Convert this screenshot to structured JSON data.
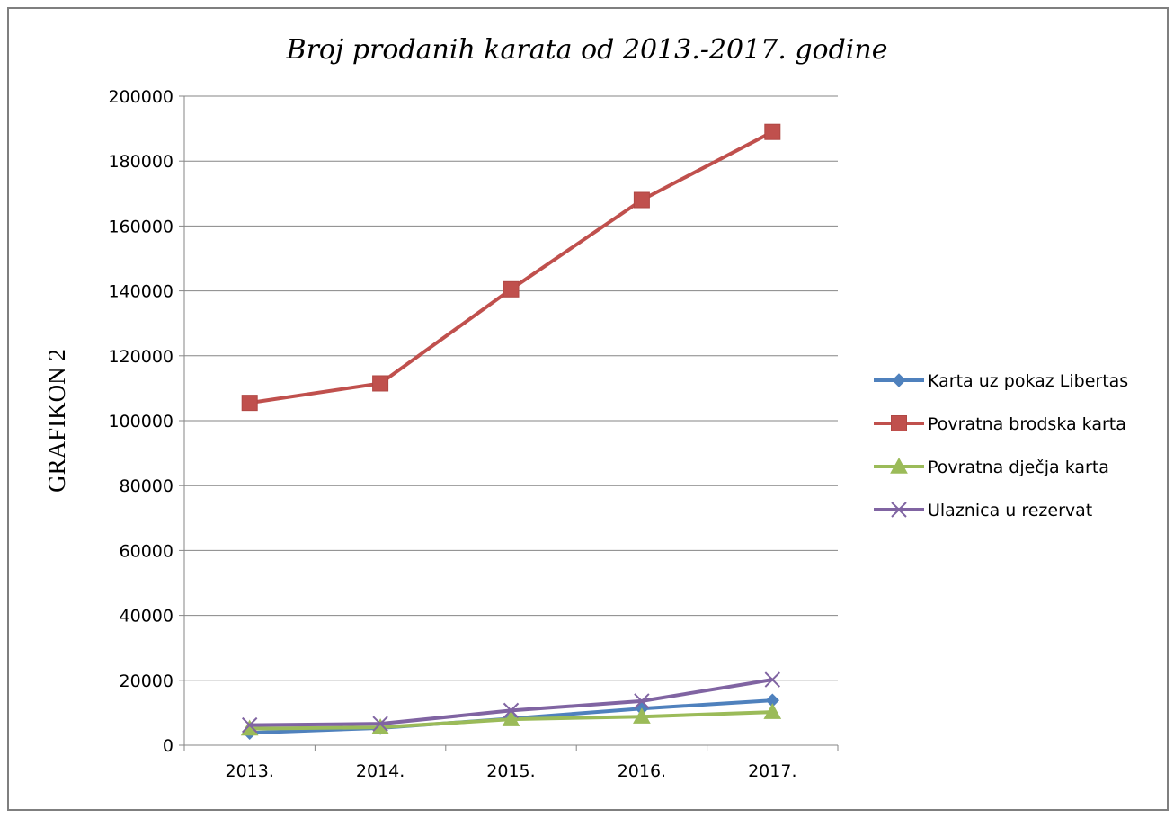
{
  "chart_data": {
    "type": "line",
    "title": "Broj prodanih karata od 2013.-2017. godine",
    "ylabel": "GRAFIKON 2",
    "xlabel": "",
    "categories": [
      "2013.",
      "2014.",
      "2015.",
      "2016.",
      "2017."
    ],
    "ylim": [
      0,
      200000
    ],
    "yticks": [
      0,
      20000,
      40000,
      60000,
      80000,
      100000,
      120000,
      140000,
      160000,
      180000,
      200000
    ],
    "grid": "horizontal",
    "legend_position": "right",
    "series": [
      {
        "name": "Karta uz pokaz Libertas",
        "color": "#4f81bd",
        "marker": "diamond",
        "values": [
          3800,
          5300,
          8200,
          11300,
          13800
        ]
      },
      {
        "name": "Povratna brodska karta",
        "color": "#c0504d",
        "marker": "square",
        "values": [
          105500,
          111500,
          140500,
          168000,
          189000
        ]
      },
      {
        "name": "Povratna dječja karta",
        "color": "#9bbb59",
        "marker": "triangle",
        "values": [
          5100,
          5500,
          8000,
          8800,
          10200
        ]
      },
      {
        "name": "Ulaznica u rezervat",
        "color": "#8064a2",
        "marker": "x",
        "values": [
          6200,
          6600,
          10700,
          13600,
          20200
        ]
      }
    ]
  }
}
